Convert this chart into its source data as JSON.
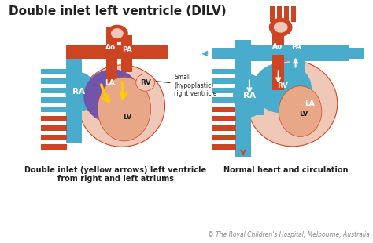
{
  "title": "Double inlet left ventricle (DILV)",
  "title_fontsize": 11,
  "bg_color": "#ffffff",
  "caption_left": "Double inlet (yellow arrows) left ventricle\nfrom right and left atriums",
  "caption_right": "Normal heart and circulation",
  "caption_fontsize": 7,
  "footnote": "© The Royal Children's Hospital, Melbourne, Australia",
  "footnote_fontsize": 5.5,
  "label_fontsize": 6.5,
  "colors": {
    "red_vessel": "#cc4422",
    "blue_vessel": "#4aaccc",
    "purple": "#7055aa",
    "pink_heart": "#e8a888",
    "pink_light": "#f0c8b8",
    "light_blue_heart": "#44aacc",
    "yellow_arrow": "#ffcc00",
    "white": "#ffffff",
    "dark_text": "#222222",
    "gray_text": "#888888",
    "outline": "#cc4422"
  }
}
